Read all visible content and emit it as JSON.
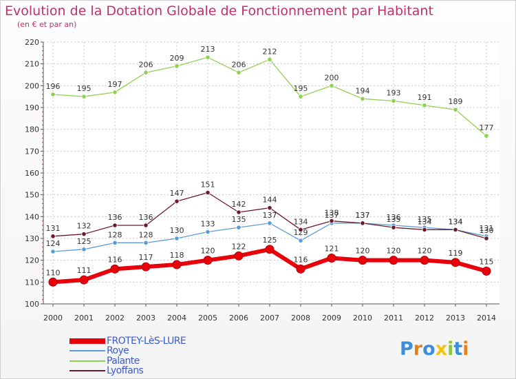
{
  "title": "Evolution de la Dotation Globale de Fonctionnement par Habitant",
  "subtitle": "(en € et par an)",
  "chart_data": {
    "type": "line",
    "x": [
      "2000",
      "2001",
      "2002",
      "2003",
      "2004",
      "2005",
      "2006",
      "2007",
      "2008",
      "2009",
      "2010",
      "2011",
      "2012",
      "2013",
      "2014"
    ],
    "ylim": [
      100,
      220
    ],
    "yticks": [
      "100",
      "110",
      "120",
      "130",
      "140",
      "150",
      "160",
      "170",
      "180",
      "190",
      "200",
      "210",
      "220"
    ],
    "grid": true,
    "legend_position": "bottom-left",
    "series": [
      {
        "name": "FROTEY-LèS-LURE",
        "color": "#e8000b",
        "values": [
          110,
          111,
          116,
          117,
          118,
          120,
          122,
          125,
          116,
          121,
          120,
          120,
          120,
          119,
          115
        ]
      },
      {
        "name": "Roye",
        "color": "#5b9bd5",
        "values": [
          124,
          125,
          128,
          128,
          130,
          133,
          135,
          137,
          129,
          137,
          137,
          136,
          135,
          134,
          131
        ]
      },
      {
        "name": "Palante",
        "color": "#8fd14f",
        "values": [
          196,
          195,
          197,
          206,
          209,
          213,
          206,
          212,
          195,
          200,
          194,
          193,
          191,
          189,
          177
        ]
      },
      {
        "name": "Lyoffans",
        "color": "#6b1a2a",
        "values": [
          131,
          132,
          136,
          136,
          147,
          151,
          142,
          144,
          134,
          138,
          137,
          135,
          134,
          134,
          130
        ]
      }
    ]
  },
  "logo": {
    "letters": [
      "P",
      "r",
      "o",
      "x",
      "i",
      "t",
      "i"
    ],
    "colors": [
      "#3d8ed8",
      "#e8801a",
      "#3d8ed8",
      "#f2c40f",
      "#8dc63f",
      "#3d8ed8",
      "#e8801a"
    ]
  }
}
